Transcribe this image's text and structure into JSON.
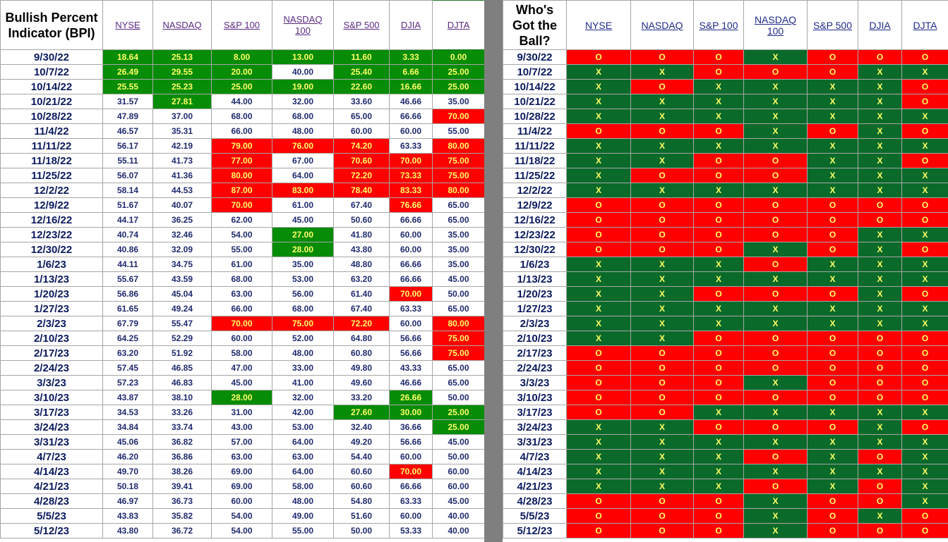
{
  "bpi_title": "Bullish Percent Indicator (BPI)",
  "ball_title": "Who's Got the Ball?",
  "columns": [
    "NYSE",
    "NASDAQ",
    "S&P 100",
    "NASDAQ 100",
    "S&P 500",
    "DJIA",
    "DJTA"
  ],
  "colors": {
    "green_cell": "#078c07",
    "red_cell": "#ff0000",
    "x_cell": "#0a6a2a",
    "o_cell": "#ff0000",
    "cell_text": "#ffff66"
  },
  "rows": [
    {
      "date": "9/30/22",
      "bpi": [
        "18.64",
        "25.13",
        "8.00",
        "13.00",
        "11.60",
        "3.33",
        "0.00"
      ],
      "bpi_color": [
        "g",
        "g",
        "g",
        "g",
        "g",
        "g",
        "g"
      ],
      "ball": [
        "O",
        "O",
        "O",
        "X",
        "O",
        "O",
        "O"
      ]
    },
    {
      "date": "10/7/22",
      "bpi": [
        "26.49",
        "29.55",
        "20.00",
        "40.00",
        "25.40",
        "6.66",
        "25.00"
      ],
      "bpi_color": [
        "g",
        "g",
        "g",
        "",
        "g",
        "g",
        "g"
      ],
      "ball": [
        "X",
        "X",
        "O",
        "O",
        "O",
        "X",
        "X"
      ]
    },
    {
      "date": "10/14/22",
      "bpi": [
        "25.55",
        "25.23",
        "25.00",
        "19.00",
        "22.60",
        "16.66",
        "25.00"
      ],
      "bpi_color": [
        "g",
        "g",
        "g",
        "g",
        "g",
        "g",
        "g"
      ],
      "ball": [
        "X",
        "O",
        "X",
        "X",
        "X",
        "X",
        "O"
      ]
    },
    {
      "date": "10/21/22",
      "bpi": [
        "31.57",
        "27.81",
        "44.00",
        "32.00",
        "33.60",
        "46.66",
        "35.00"
      ],
      "bpi_color": [
        "",
        "g",
        "",
        "",
        "",
        "",
        ""
      ],
      "ball": [
        "X",
        "X",
        "X",
        "X",
        "X",
        "X",
        "O"
      ]
    },
    {
      "date": "10/28/22",
      "bpi": [
        "47.89",
        "37.00",
        "68.00",
        "68.00",
        "65.00",
        "66.66",
        "70.00"
      ],
      "bpi_color": [
        "",
        "",
        "",
        "",
        "",
        "",
        "r"
      ],
      "ball": [
        "X",
        "X",
        "X",
        "X",
        "X",
        "X",
        "X"
      ]
    },
    {
      "date": "11/4/22",
      "bpi": [
        "46.57",
        "35.31",
        "66.00",
        "48.00",
        "60.00",
        "60.00",
        "55.00"
      ],
      "bpi_color": [
        "",
        "",
        "",
        "",
        "",
        "",
        ""
      ],
      "ball": [
        "O",
        "O",
        "O",
        "X",
        "O",
        "X",
        "O"
      ]
    },
    {
      "date": "11/11/22",
      "bpi": [
        "56.17",
        "42.19",
        "79.00",
        "76.00",
        "74.20",
        "63.33",
        "80.00"
      ],
      "bpi_color": [
        "",
        "",
        "r",
        "r",
        "r",
        "",
        "r"
      ],
      "ball": [
        "X",
        "X",
        "X",
        "X",
        "X",
        "X",
        "X"
      ]
    },
    {
      "date": "11/18/22",
      "bpi": [
        "55.11",
        "41.73",
        "77.00",
        "67.00",
        "70.60",
        "70.00",
        "75.00"
      ],
      "bpi_color": [
        "",
        "",
        "r",
        "",
        "r",
        "r",
        "r"
      ],
      "ball": [
        "X",
        "X",
        "O",
        "O",
        "X",
        "X",
        "O"
      ]
    },
    {
      "date": "11/25/22",
      "bpi": [
        "56.07",
        "41.36",
        "80.00",
        "64.00",
        "72.20",
        "73.33",
        "75.00"
      ],
      "bpi_color": [
        "",
        "",
        "r",
        "",
        "r",
        "r",
        "r"
      ],
      "ball": [
        "X",
        "O",
        "O",
        "O",
        "X",
        "X",
        "X"
      ]
    },
    {
      "date": "12/2/22",
      "bpi": [
        "58.14",
        "44.53",
        "87.00",
        "83.00",
        "78.40",
        "83.33",
        "80.00"
      ],
      "bpi_color": [
        "",
        "",
        "r",
        "r",
        "r",
        "r",
        "r"
      ],
      "ball": [
        "X",
        "X",
        "X",
        "X",
        "X",
        "X",
        "X"
      ]
    },
    {
      "date": "12/9/22",
      "bpi": [
        "51.67",
        "40.07",
        "70.00",
        "61.00",
        "67.40",
        "76.66",
        "65.00"
      ],
      "bpi_color": [
        "",
        "",
        "r",
        "",
        "",
        "r",
        ""
      ],
      "ball": [
        "O",
        "O",
        "O",
        "O",
        "O",
        "O",
        "O"
      ]
    },
    {
      "date": "12/16/22",
      "bpi": [
        "44.17",
        "36.25",
        "62.00",
        "45.00",
        "50.60",
        "66.66",
        "65.00"
      ],
      "bpi_color": [
        "",
        "",
        "",
        "",
        "",
        "",
        ""
      ],
      "ball": [
        "O",
        "O",
        "O",
        "O",
        "O",
        "O",
        "O"
      ]
    },
    {
      "date": "12/23/22",
      "bpi": [
        "40.74",
        "32.46",
        "54.00",
        "27.00",
        "41.80",
        "60.00",
        "35.00"
      ],
      "bpi_color": [
        "",
        "",
        "",
        "g",
        "",
        "",
        ""
      ],
      "ball": [
        "O",
        "O",
        "O",
        "O",
        "O",
        "X",
        "X"
      ]
    },
    {
      "date": "12/30/22",
      "bpi": [
        "40.86",
        "32.09",
        "55.00",
        "28.00",
        "43.80",
        "60.00",
        "35.00"
      ],
      "bpi_color": [
        "",
        "",
        "",
        "g",
        "",
        "",
        ""
      ],
      "ball": [
        "O",
        "O",
        "O",
        "X",
        "O",
        "X",
        "O"
      ]
    },
    {
      "date": "1/6/23",
      "bpi": [
        "44.11",
        "34.75",
        "61.00",
        "35.00",
        "48.80",
        "66.66",
        "35.00"
      ],
      "bpi_color": [
        "",
        "",
        "",
        "",
        "",
        "",
        ""
      ],
      "ball": [
        "X",
        "X",
        "X",
        "O",
        "X",
        "X",
        "X"
      ]
    },
    {
      "date": "1/13/23",
      "bpi": [
        "55.67",
        "43.59",
        "68.00",
        "53.00",
        "63.20",
        "66.66",
        "45.00"
      ],
      "bpi_color": [
        "",
        "",
        "",
        "",
        "",
        "",
        ""
      ],
      "ball": [
        "X",
        "X",
        "X",
        "X",
        "X",
        "X",
        "X"
      ]
    },
    {
      "date": "1/20/23",
      "bpi": [
        "56.86",
        "45.04",
        "63.00",
        "56.00",
        "61.40",
        "70.00",
        "50.00"
      ],
      "bpi_color": [
        "",
        "",
        "",
        "",
        "",
        "r",
        ""
      ],
      "ball": [
        "X",
        "X",
        "O",
        "O",
        "O",
        "X",
        "O"
      ]
    },
    {
      "date": "1/27/23",
      "bpi": [
        "61.65",
        "49.24",
        "66.00",
        "68.00",
        "67.40",
        "63.33",
        "65.00"
      ],
      "bpi_color": [
        "",
        "",
        "",
        "",
        "",
        "",
        ""
      ],
      "ball": [
        "X",
        "X",
        "X",
        "X",
        "X",
        "X",
        "X"
      ]
    },
    {
      "date": "2/3/23",
      "bpi": [
        "67.79",
        "55.47",
        "70.00",
        "75.00",
        "72.20",
        "60.00",
        "80.00"
      ],
      "bpi_color": [
        "",
        "",
        "r",
        "r",
        "r",
        "",
        "r"
      ],
      "ball": [
        "X",
        "X",
        "X",
        "X",
        "X",
        "X",
        "X"
      ]
    },
    {
      "date": "2/10/23",
      "bpi": [
        "64.25",
        "52.29",
        "60.00",
        "52.00",
        "64.80",
        "56.66",
        "75.00"
      ],
      "bpi_color": [
        "",
        "",
        "",
        "",
        "",
        "",
        "r"
      ],
      "ball": [
        "X",
        "X",
        "O",
        "O",
        "O",
        "O",
        "O"
      ]
    },
    {
      "date": "2/17/23",
      "bpi": [
        "63.20",
        "51.92",
        "58.00",
        "48.00",
        "60.80",
        "56.66",
        "75.00"
      ],
      "bpi_color": [
        "",
        "",
        "",
        "",
        "",
        "",
        "r"
      ],
      "ball": [
        "O",
        "O",
        "O",
        "O",
        "O",
        "O",
        "O"
      ]
    },
    {
      "date": "2/24/23",
      "bpi": [
        "57.45",
        "46.85",
        "47.00",
        "33.00",
        "49.80",
        "43.33",
        "65.00"
      ],
      "bpi_color": [
        "",
        "",
        "",
        "",
        "",
        "",
        ""
      ],
      "ball": [
        "O",
        "O",
        "O",
        "O",
        "O",
        "O",
        "O"
      ]
    },
    {
      "date": "3/3/23",
      "bpi": [
        "57.23",
        "46.83",
        "45.00",
        "41.00",
        "49.60",
        "46.66",
        "65.00"
      ],
      "bpi_color": [
        "",
        "",
        "",
        "",
        "",
        "",
        ""
      ],
      "ball": [
        "O",
        "O",
        "O",
        "X",
        "O",
        "O",
        "O"
      ]
    },
    {
      "date": "3/10/23",
      "bpi": [
        "43.87",
        "38.10",
        "28.00",
        "32.00",
        "33.20",
        "26.66",
        "50.00"
      ],
      "bpi_color": [
        "",
        "",
        "g",
        "",
        "",
        "g",
        ""
      ],
      "ball": [
        "O",
        "O",
        "O",
        "O",
        "O",
        "O",
        "O"
      ]
    },
    {
      "date": "3/17/23",
      "bpi": [
        "34.53",
        "33.26",
        "31.00",
        "42.00",
        "27.60",
        "30.00",
        "25.00"
      ],
      "bpi_color": [
        "",
        "",
        "",
        "",
        "g",
        "g",
        "g"
      ],
      "ball": [
        "O",
        "O",
        "X",
        "X",
        "X",
        "X",
        "X"
      ]
    },
    {
      "date": "3/24/23",
      "bpi": [
        "34.84",
        "33.74",
        "43.00",
        "53.00",
        "32.40",
        "36.66",
        "25.00"
      ],
      "bpi_color": [
        "",
        "",
        "",
        "",
        "",
        "",
        "g"
      ],
      "ball": [
        "X",
        "X",
        "O",
        "O",
        "O",
        "X",
        "O"
      ]
    },
    {
      "date": "3/31/23",
      "bpi": [
        "45.06",
        "36.82",
        "57.00",
        "64.00",
        "49.20",
        "56.66",
        "45.00"
      ],
      "bpi_color": [
        "",
        "",
        "",
        "",
        "",
        "",
        ""
      ],
      "ball": [
        "X",
        "X",
        "X",
        "X",
        "X",
        "X",
        "X"
      ]
    },
    {
      "date": "4/7/23",
      "bpi": [
        "46.20",
        "36.86",
        "63.00",
        "63.00",
        "54.40",
        "60.00",
        "50.00"
      ],
      "bpi_color": [
        "",
        "",
        "",
        "",
        "",
        "",
        ""
      ],
      "ball": [
        "X",
        "X",
        "X",
        "O",
        "X",
        "O",
        "X"
      ]
    },
    {
      "date": "4/14/23",
      "bpi": [
        "49.70",
        "38.26",
        "69.00",
        "64.00",
        "60.60",
        "70.00",
        "60.00"
      ],
      "bpi_color": [
        "",
        "",
        "",
        "",
        "",
        "r",
        ""
      ],
      "ball": [
        "X",
        "X",
        "X",
        "X",
        "X",
        "X",
        "X"
      ]
    },
    {
      "date": "4/21/23",
      "bpi": [
        "50.18",
        "39.41",
        "69.00",
        "58.00",
        "60.60",
        "66.66",
        "60.00"
      ],
      "bpi_color": [
        "",
        "",
        "",
        "",
        "",
        "",
        ""
      ],
      "ball": [
        "X",
        "X",
        "X",
        "O",
        "X",
        "O",
        "X"
      ]
    },
    {
      "date": "4/28/23",
      "bpi": [
        "46.97",
        "36.73",
        "60.00",
        "48.00",
        "54.80",
        "63.33",
        "45.00"
      ],
      "bpi_color": [
        "",
        "",
        "",
        "",
        "",
        "",
        ""
      ],
      "ball": [
        "O",
        "O",
        "O",
        "X",
        "O",
        "O",
        "X"
      ]
    },
    {
      "date": "5/5/23",
      "bpi": [
        "43.83",
        "35.82",
        "54.00",
        "49.00",
        "51.60",
        "60.00",
        "40.00"
      ],
      "bpi_color": [
        "",
        "",
        "",
        "",
        "",
        "",
        ""
      ],
      "ball": [
        "O",
        "O",
        "O",
        "X",
        "O",
        "X",
        "O"
      ]
    },
    {
      "date": "5/12/23",
      "bpi": [
        "43.80",
        "36.72",
        "54.00",
        "55.00",
        "50.00",
        "53.33",
        "40.00"
      ],
      "bpi_color": [
        "",
        "",
        "",
        "",
        "",
        "",
        ""
      ],
      "ball": [
        "O",
        "O",
        "O",
        "X",
        "O",
        "O",
        "O"
      ]
    }
  ]
}
